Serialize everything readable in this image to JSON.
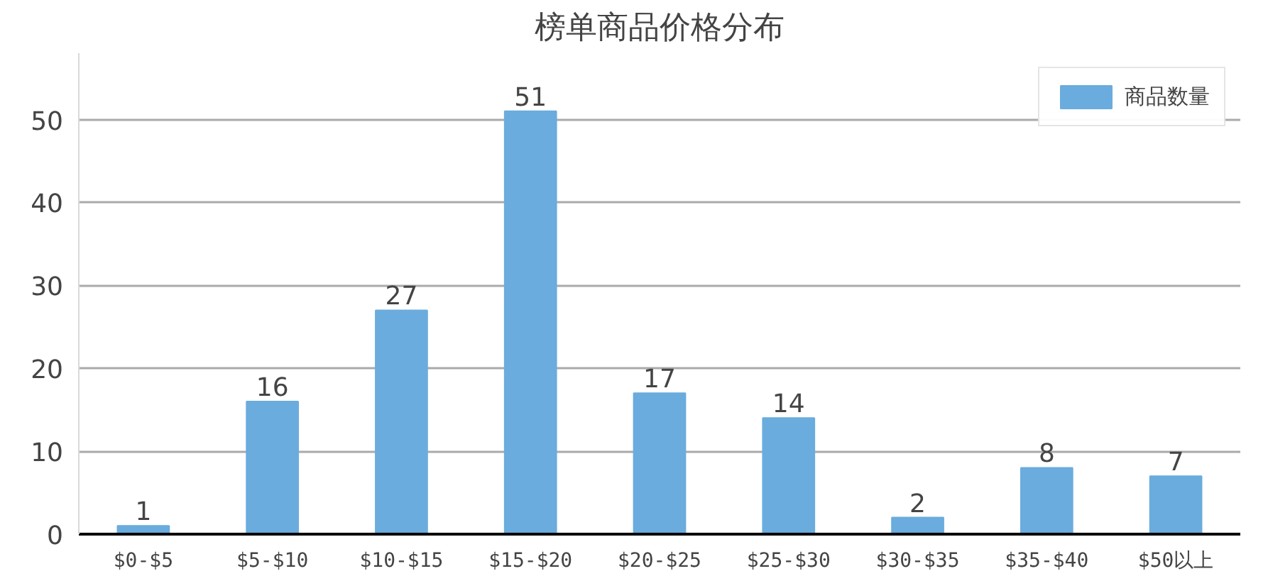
{
  "chart_data": {
    "type": "bar",
    "title": "榜单商品价格分布",
    "categories": [
      "$0-$5",
      "$5-$10",
      "$10-$15",
      "$15-$20",
      "$20-$25",
      "$25-$30",
      "$30-$35",
      "$35-$40",
      "$50以上"
    ],
    "series": [
      {
        "name": "商品数量",
        "color": "#6aacdd",
        "values": [
          1,
          16,
          27,
          51,
          17,
          14,
          2,
          8,
          7
        ]
      }
    ],
    "ylim": [
      0,
      58
    ],
    "yticks": [
      0,
      10,
      20,
      30,
      40,
      50
    ],
    "grid": "y",
    "legend": "top right",
    "data_labels": true
  }
}
